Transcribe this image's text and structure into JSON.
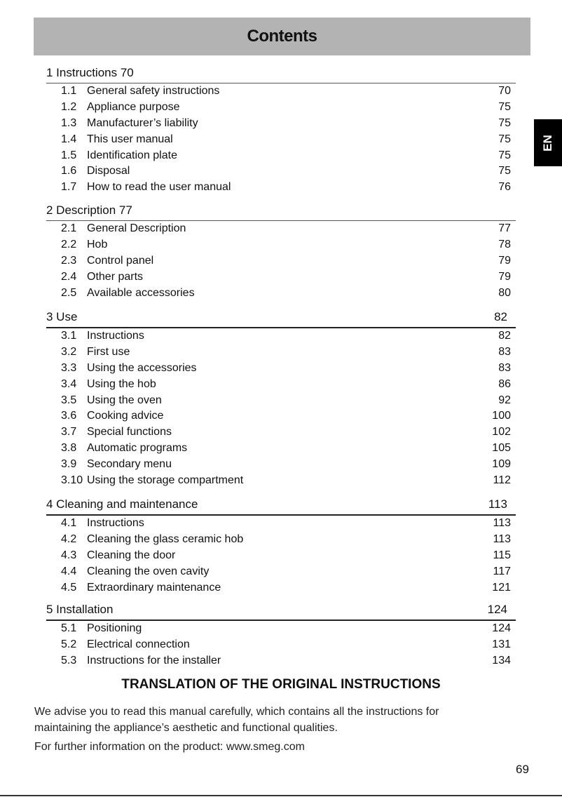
{
  "title": "Contents",
  "language_tab": "EN",
  "sections": [
    {
      "heading": "1 Instructions 70",
      "page": "",
      "items": [
        {
          "num": "1.1",
          "title": "General safety instructions",
          "page": "70"
        },
        {
          "num": "1.2",
          "title": "Appliance purpose",
          "page": "75"
        },
        {
          "num": "1.3",
          "title": "Manufacturer’s liability",
          "page": "75"
        },
        {
          "num": "1.4",
          "title": "This user manual",
          "page": "75"
        },
        {
          "num": "1.5",
          "title": "Identification plate",
          "page": "75"
        },
        {
          "num": "1.6",
          "title": "Disposal",
          "page": "75"
        },
        {
          "num": "1.7",
          "title": "How to read the user manual",
          "page": "76"
        }
      ]
    },
    {
      "heading": "2 Description 77",
      "page": "",
      "items": [
        {
          "num": "2.1",
          "title": "General Description",
          "page": "77"
        },
        {
          "num": "2.2",
          "title": "Hob",
          "page": "78"
        },
        {
          "num": "2.3",
          "title": "Control panel",
          "page": "79"
        },
        {
          "num": "2.4",
          "title": "Other parts",
          "page": "79"
        },
        {
          "num": "2.5",
          "title": "Available accessories",
          "page": "80"
        }
      ]
    },
    {
      "heading": "3 Use",
      "page": "82",
      "items": [
        {
          "num": "3.1",
          "title": "Instructions",
          "page": "82"
        },
        {
          "num": "3.2",
          "title": "First use",
          "page": "83"
        },
        {
          "num": "3.3",
          "title": "Using the accessories",
          "page": "83"
        },
        {
          "num": "3.4",
          "title": "Using the hob",
          "page": "86"
        },
        {
          "num": "3.5",
          "title": "Using the oven",
          "page": "92"
        },
        {
          "num": "3.6",
          "title": "Cooking advice",
          "page": "100"
        },
        {
          "num": "3.7",
          "title": "Special functions",
          "page": "102"
        },
        {
          "num": "3.8",
          "title": "Automatic programs",
          "page": "105"
        },
        {
          "num": "3.9",
          "title": "Secondary menu",
          "page": "109"
        },
        {
          "num": "3.10",
          "title": "Using the storage compartment",
          "page": "112"
        }
      ]
    },
    {
      "heading": "4 Cleaning and maintenance",
      "page": "113",
      "items": [
        {
          "num": "4.1",
          "title": "Instructions",
          "page": "113"
        },
        {
          "num": "4.2",
          "title": "Cleaning the glass ceramic hob",
          "page": "113"
        },
        {
          "num": "4.3",
          "title": "Cleaning the door",
          "page": "115"
        },
        {
          "num": "4.4",
          "title": "Cleaning the oven cavity",
          "page": "117"
        },
        {
          "num": "4.5",
          "title": "Extraordinary maintenance",
          "page": "121"
        }
      ]
    },
    {
      "heading": "5 Installation",
      "page": "124",
      "items": [
        {
          "num": "5.1",
          "title": "Positioning",
          "page": "124"
        },
        {
          "num": "5.2",
          "title": "Electrical connection",
          "page": "131"
        },
        {
          "num": "5.3",
          "title": "Instructions for the installer",
          "page": "134"
        }
      ]
    }
  ],
  "footer": {
    "translation_title": "TRANSLATION OF THE ORIGINAL INSTRUCTIONS",
    "advice_line1": "We advise you to read this manual carefully, which contains all the instructions for",
    "advice_line2": "maintaining the appliance’s aesthetic and functional qualities.",
    "info": "For further information on the product: www.smeg.com",
    "page_number": "69"
  }
}
